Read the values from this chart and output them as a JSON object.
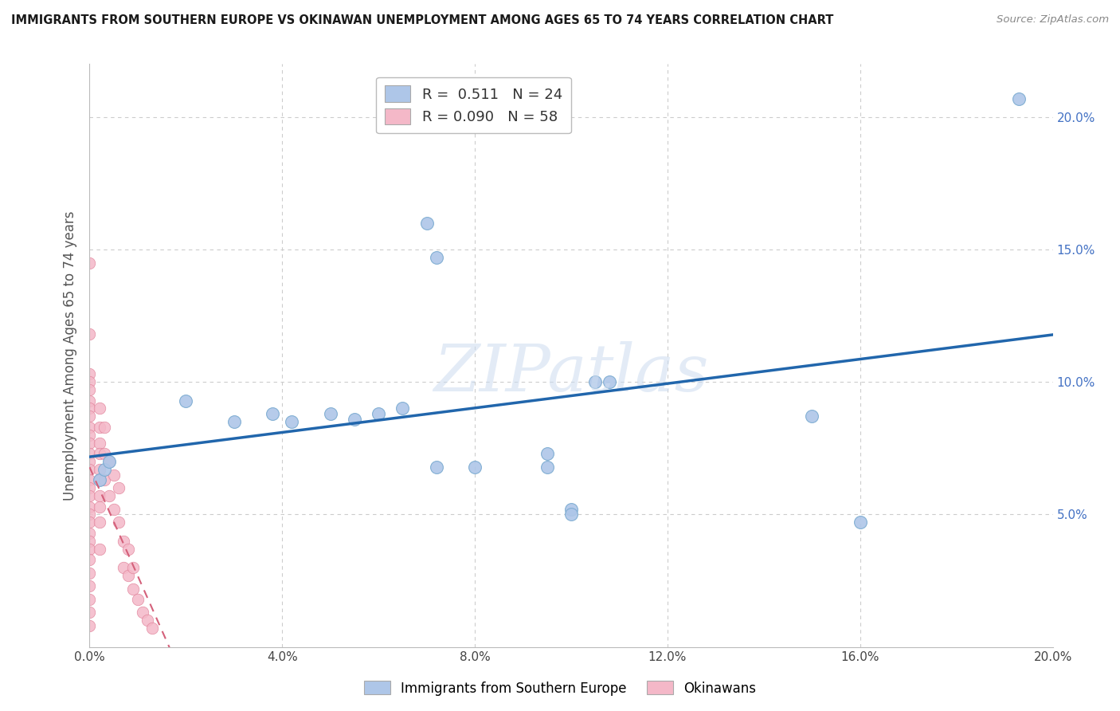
{
  "title": "IMMIGRANTS FROM SOUTHERN EUROPE VS OKINAWAN UNEMPLOYMENT AMONG AGES 65 TO 74 YEARS CORRELATION CHART",
  "source": "Source: ZipAtlas.com",
  "ylabel": "Unemployment Among Ages 65 to 74 years",
  "xlim": [
    0,
    0.2
  ],
  "ylim": [
    0,
    0.22
  ],
  "xticks": [
    0.0,
    0.04,
    0.08,
    0.12,
    0.16,
    0.2
  ],
  "yticks": [
    0.0,
    0.05,
    0.1,
    0.15,
    0.2
  ],
  "ytick_labels_right": [
    "",
    "5.0%",
    "10.0%",
    "15.0%",
    "20.0%"
  ],
  "xtick_labels": [
    "0.0%",
    "4.0%",
    "8.0%",
    "12.0%",
    "16.0%",
    "20.0%"
  ],
  "blue_R": 0.511,
  "blue_N": 24,
  "pink_R": 0.09,
  "pink_N": 58,
  "blue_color": "#aec6e8",
  "blue_edge_color": "#7aaad0",
  "blue_line_color": "#2166ac",
  "pink_color": "#f4b8c8",
  "pink_edge_color": "#e08098",
  "pink_line_color": "#d4607a",
  "blue_scatter": [
    [
      0.002,
      0.063
    ],
    [
      0.003,
      0.067
    ],
    [
      0.004,
      0.07
    ],
    [
      0.02,
      0.093
    ],
    [
      0.03,
      0.085
    ],
    [
      0.038,
      0.088
    ],
    [
      0.042,
      0.085
    ],
    [
      0.05,
      0.088
    ],
    [
      0.055,
      0.086
    ],
    [
      0.06,
      0.088
    ],
    [
      0.065,
      0.09
    ],
    [
      0.07,
      0.16
    ],
    [
      0.072,
      0.147
    ],
    [
      0.072,
      0.068
    ],
    [
      0.08,
      0.068
    ],
    [
      0.095,
      0.073
    ],
    [
      0.095,
      0.068
    ],
    [
      0.1,
      0.052
    ],
    [
      0.1,
      0.05
    ],
    [
      0.105,
      0.1
    ],
    [
      0.108,
      0.1
    ],
    [
      0.15,
      0.087
    ],
    [
      0.16,
      0.047
    ],
    [
      0.193,
      0.207
    ]
  ],
  "pink_scatter": [
    [
      0.0,
      0.145
    ],
    [
      0.0,
      0.118
    ],
    [
      0.0,
      0.103
    ],
    [
      0.0,
      0.1
    ],
    [
      0.0,
      0.097
    ],
    [
      0.0,
      0.093
    ],
    [
      0.0,
      0.09
    ],
    [
      0.0,
      0.087
    ],
    [
      0.0,
      0.083
    ],
    [
      0.0,
      0.08
    ],
    [
      0.0,
      0.077
    ],
    [
      0.0,
      0.073
    ],
    [
      0.0,
      0.07
    ],
    [
      0.0,
      0.067
    ],
    [
      0.0,
      0.063
    ],
    [
      0.0,
      0.06
    ],
    [
      0.0,
      0.057
    ],
    [
      0.0,
      0.053
    ],
    [
      0.0,
      0.05
    ],
    [
      0.0,
      0.047
    ],
    [
      0.0,
      0.043
    ],
    [
      0.0,
      0.04
    ],
    [
      0.0,
      0.037
    ],
    [
      0.0,
      0.033
    ],
    [
      0.0,
      0.028
    ],
    [
      0.0,
      0.023
    ],
    [
      0.0,
      0.018
    ],
    [
      0.0,
      0.013
    ],
    [
      0.0,
      0.008
    ],
    [
      0.002,
      0.09
    ],
    [
      0.002,
      0.083
    ],
    [
      0.002,
      0.077
    ],
    [
      0.002,
      0.073
    ],
    [
      0.002,
      0.067
    ],
    [
      0.002,
      0.063
    ],
    [
      0.002,
      0.057
    ],
    [
      0.002,
      0.053
    ],
    [
      0.002,
      0.047
    ],
    [
      0.002,
      0.037
    ],
    [
      0.003,
      0.083
    ],
    [
      0.003,
      0.073
    ],
    [
      0.003,
      0.063
    ],
    [
      0.004,
      0.07
    ],
    [
      0.004,
      0.057
    ],
    [
      0.005,
      0.065
    ],
    [
      0.005,
      0.052
    ],
    [
      0.006,
      0.06
    ],
    [
      0.006,
      0.047
    ],
    [
      0.007,
      0.04
    ],
    [
      0.007,
      0.03
    ],
    [
      0.008,
      0.037
    ],
    [
      0.008,
      0.027
    ],
    [
      0.009,
      0.03
    ],
    [
      0.009,
      0.022
    ],
    [
      0.01,
      0.018
    ],
    [
      0.011,
      0.013
    ],
    [
      0.012,
      0.01
    ],
    [
      0.013,
      0.007
    ]
  ],
  "watermark_text": "ZIPatlas",
  "grid_color": "#cccccc",
  "background_color": "#ffffff"
}
